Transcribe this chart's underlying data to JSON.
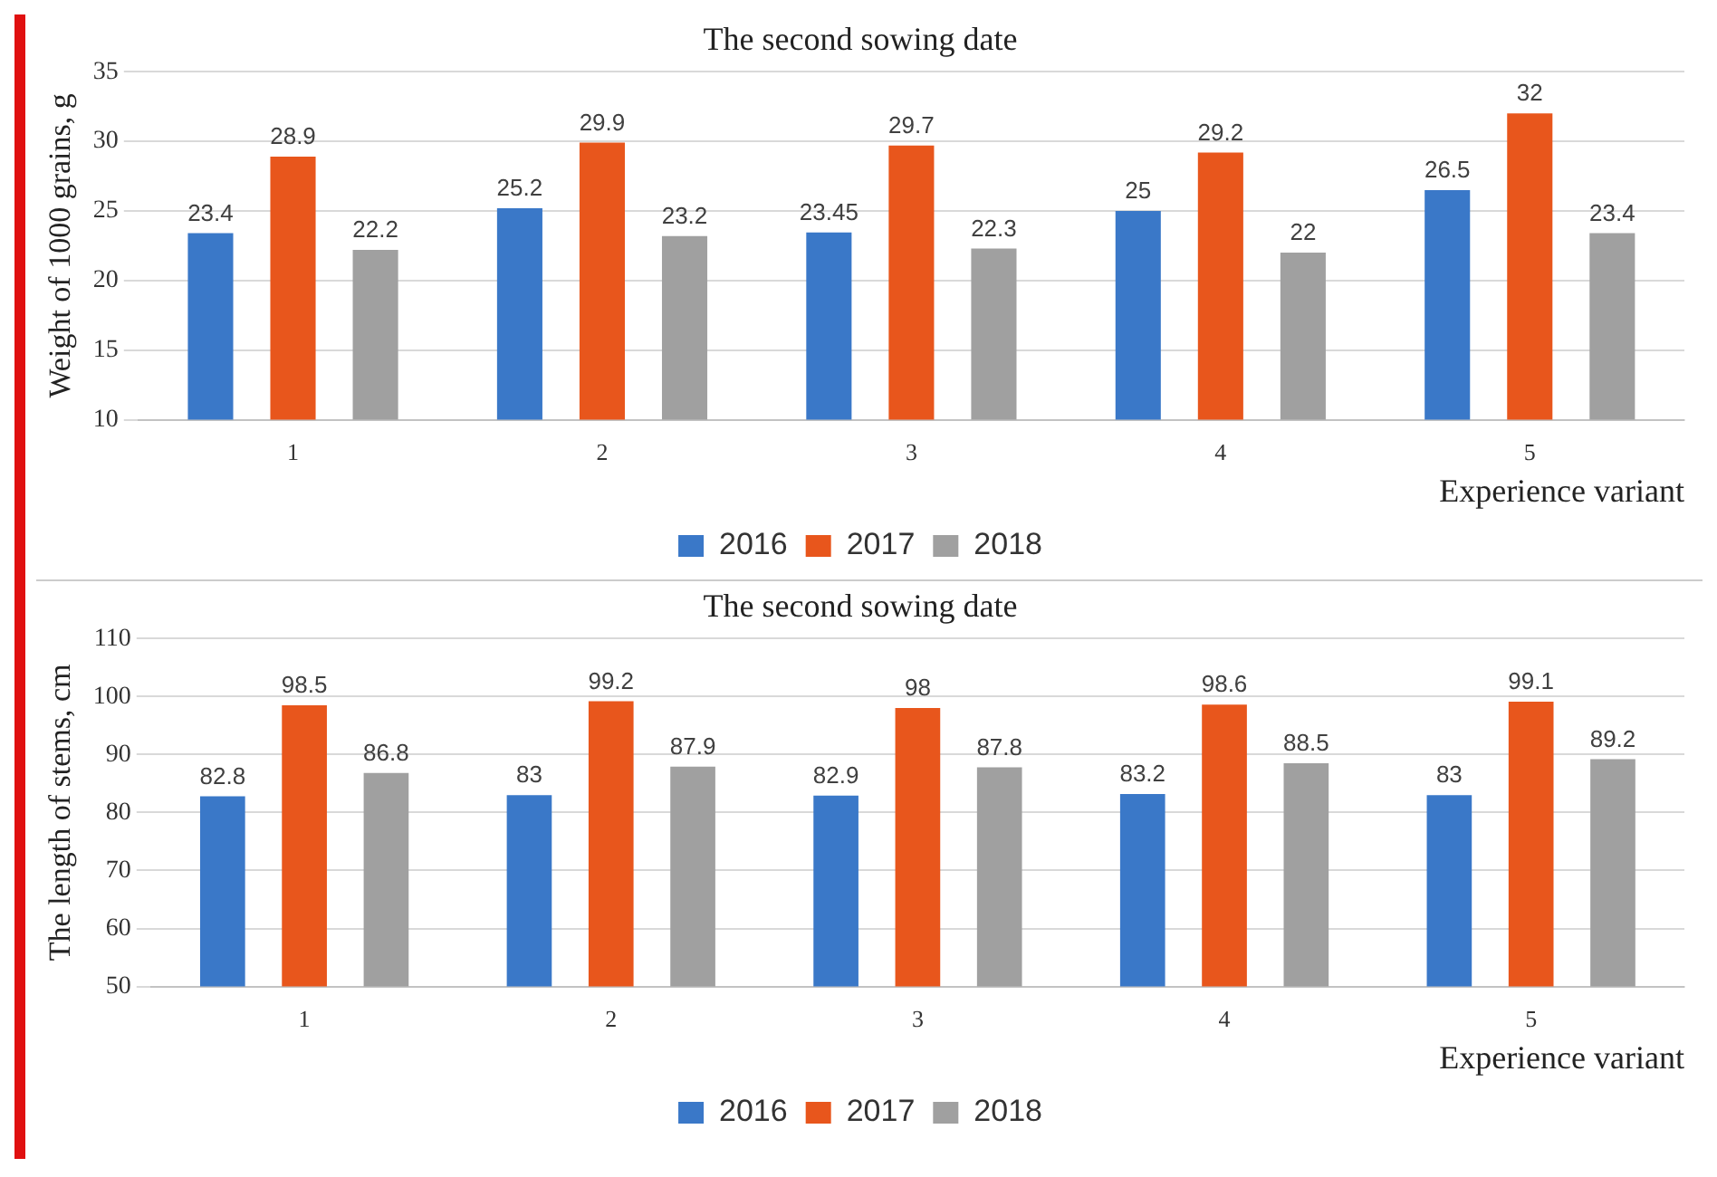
{
  "chart_data": [
    {
      "type": "bar",
      "title": "The second sowing date",
      "xlabel": "Experience variant",
      "ylabel": "Weight of 1000 grains, g",
      "categories": [
        "1",
        "2",
        "3",
        "4",
        "5"
      ],
      "series": [
        {
          "name": "2016",
          "color": "#3a78c8",
          "values": [
            23.4,
            25.2,
            23.45,
            25,
            26.5
          ]
        },
        {
          "name": "2017",
          "color": "#e8561c",
          "values": [
            28.9,
            29.9,
            29.7,
            29.2,
            32
          ]
        },
        {
          "name": "2018",
          "color": "#a0a0a0",
          "values": [
            22.2,
            23.2,
            22.3,
            22,
            23.4
          ]
        }
      ],
      "ylim": [
        10,
        35
      ],
      "yticks": [
        10,
        15,
        20,
        25,
        30,
        35
      ],
      "grid": "y",
      "legend": "bottom",
      "data_labels": true
    },
    {
      "type": "bar",
      "title": "The second sowing date",
      "xlabel": "Experience variant",
      "ylabel": "The length of stems, cm",
      "categories": [
        "1",
        "2",
        "3",
        "4",
        "5"
      ],
      "series": [
        {
          "name": "2016",
          "color": "#3a78c8",
          "values": [
            82.8,
            83,
            82.9,
            83.2,
            83
          ]
        },
        {
          "name": "2017",
          "color": "#e8561c",
          "values": [
            98.5,
            99.2,
            98,
            98.6,
            99.1
          ]
        },
        {
          "name": "2018",
          "color": "#a0a0a0",
          "values": [
            86.8,
            87.9,
            87.8,
            88.5,
            89.2
          ]
        }
      ],
      "ylim": [
        50,
        110
      ],
      "yticks": [
        50,
        60,
        70,
        80,
        90,
        100,
        110
      ],
      "grid": "y",
      "legend": "bottom",
      "data_labels": true
    }
  ]
}
